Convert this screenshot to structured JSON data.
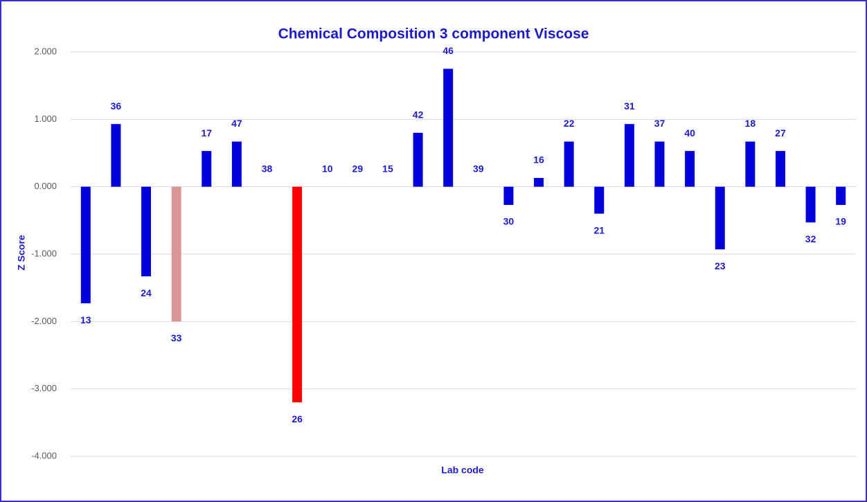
{
  "chart_data": {
    "type": "bar",
    "title": "Chemical Composition 3 component Viscose",
    "y_label": "Z Score",
    "x_label": "Lab code",
    "categories": [
      "13",
      "36",
      "24",
      "33",
      "17",
      "47",
      "38",
      "26",
      "10",
      "29",
      "15",
      "42",
      "46",
      "39",
      "30",
      "16",
      "22",
      "21",
      "31",
      "37",
      "40",
      "23",
      "18",
      "27",
      "32",
      "19"
    ],
    "values": [
      -1.73,
      0.93,
      -1.33,
      -2.0,
      0.53,
      0.67,
      0,
      -3.2,
      0,
      0,
      0,
      0.8,
      1.75,
      0,
      -0.27,
      0.13,
      0.67,
      -0.4,
      0.93,
      0.67,
      0.53,
      -0.93,
      0.67,
      0.53,
      -0.53,
      -0.27
    ],
    "colors": [
      "#0000dd",
      "#0000dd",
      "#0000dd",
      "#d99694",
      "#0000dd",
      "#0000dd",
      "#0000dd",
      "#ff0000",
      "#0000dd",
      "#0000dd",
      "#0000dd",
      "#0000dd",
      "#0000dd",
      "#0000dd",
      "#0000dd",
      "#0000dd",
      "#0000dd",
      "#0000dd",
      "#0000dd",
      "#0000dd",
      "#0000dd",
      "#0000dd",
      "#0000dd",
      "#0000dd",
      "#0000dd",
      "#0000dd"
    ],
    "ylim": [
      -4,
      2
    ],
    "yticks": [
      {
        "value": -4,
        "label": "-4.000"
      },
      {
        "value": -3,
        "label": "-3.000"
      },
      {
        "value": -2,
        "label": "-2.000"
      },
      {
        "value": -1,
        "label": "-1.000"
      },
      {
        "value": 0,
        "label": "0.000"
      },
      {
        "value": 1,
        "label": "1.000"
      },
      {
        "value": 2,
        "label": "2.000"
      }
    ],
    "grid": true
  }
}
